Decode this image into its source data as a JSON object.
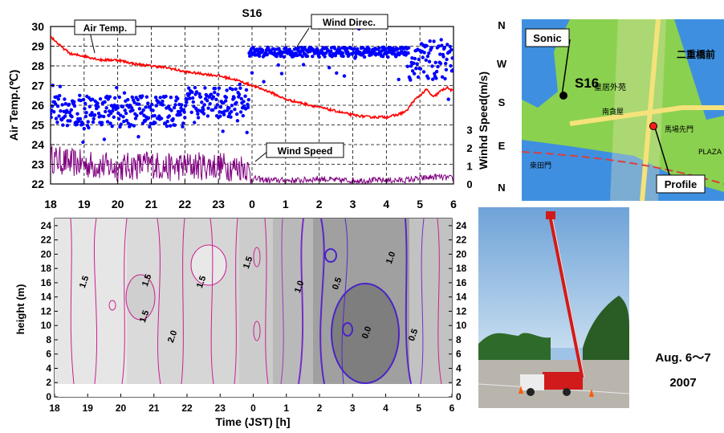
{
  "chart_data": [
    {
      "type": "line",
      "title": "S16",
      "ylabel_left": "Air Temp.(℃)",
      "ylabel_right": "Winhd Speed(m/s)",
      "xticks": [
        "18",
        "19",
        "20",
        "21",
        "22",
        "23",
        "0",
        "1",
        "2",
        "3",
        "4",
        "5",
        "6"
      ],
      "yticks_left": [
        "30",
        "29",
        "28",
        "27",
        "26",
        "25",
        "24",
        "23",
        "22"
      ],
      "yticks_right": [
        "3",
        "2",
        "1",
        "0"
      ],
      "direction_labels": [
        "N",
        "W",
        "S",
        "E",
        "N"
      ],
      "ylim_left": [
        22,
        30
      ],
      "grid": true,
      "annotations": {
        "air_temp": "Air Temp.",
        "wind_direc": "Wind Direc.",
        "wind_speed": "Wind Speed"
      },
      "series": [
        {
          "name": "Air Temp.",
          "color": "#ff0000",
          "x": [
            0,
            0.3,
            0.6,
            1,
            1.5,
            2,
            2.5,
            3,
            3.5,
            4,
            4.5,
            5,
            5.5,
            6,
            6.5,
            7,
            7.5,
            8,
            8.5,
            9,
            9.5,
            10,
            10.3,
            10.6,
            10.8,
            11,
            11.2,
            11.4,
            11.6,
            11.8,
            12
          ],
          "y": [
            29.5,
            29.0,
            28.6,
            28.5,
            28.3,
            28.3,
            28.1,
            28.0,
            27.9,
            27.7,
            27.6,
            27.5,
            27.3,
            27.0,
            26.7,
            26.3,
            26.1,
            25.9,
            25.7,
            25.5,
            25.4,
            25.4,
            25.5,
            25.7,
            26.2,
            26.5,
            26.8,
            26.4,
            26.7,
            26.9,
            26.7
          ]
        },
        {
          "name": "Wind Direc.",
          "color": "#0000ff",
          "marker": "dot"
        },
        {
          "name": "Wind Speed",
          "color": "#800080",
          "x": [
            0,
            0.5,
            1,
            1.5,
            2,
            2.5,
            3,
            3.5,
            4,
            4.5,
            5,
            5.5,
            5.8,
            6,
            6.5,
            7,
            7.5,
            8,
            8.5,
            9,
            9.5,
            10,
            10.5,
            11,
            11.5,
            12
          ],
          "y": [
            1.4,
            1.2,
            1.1,
            1.0,
            0.9,
            1.0,
            1.1,
            0.9,
            1.0,
            1.0,
            1.0,
            0.9,
            1.0,
            0.3,
            0.2,
            0.2,
            0.2,
            0.3,
            0.2,
            0.2,
            0.2,
            0.2,
            0.2,
            0.3,
            0.4,
            0.3
          ]
        }
      ]
    },
    {
      "type": "heatmap",
      "xlabel": "Time (JST) [h]",
      "ylabel": "height (m)",
      "xticks": [
        "18",
        "19",
        "20",
        "21",
        "22",
        "23",
        "0",
        "1",
        "2",
        "3",
        "4",
        "5",
        "6"
      ],
      "yticks": [
        "0",
        "2",
        "4",
        "6",
        "8",
        "10",
        "12",
        "14",
        "16",
        "18",
        "20",
        "22",
        "24"
      ],
      "ylim": [
        0,
        25
      ],
      "contour_labels": [
        "1.5",
        "1.5",
        "1.5",
        "2.0",
        "1.5",
        "1.5",
        "1.0",
        "0.5",
        "1.0",
        "0.0",
        "0.5"
      ]
    }
  ],
  "map": {
    "labels": {
      "sonic": "Sonic",
      "s16": "S16",
      "profile": "Profile"
    },
    "place_names": [
      "二重橋前",
      "皇居外苑",
      "桒田門",
      "南貪屋",
      "馬場先門",
      "PLAZA"
    ]
  },
  "photo": {
    "caption_line1": "Aug. 6～7",
    "caption_line2": "2007"
  }
}
